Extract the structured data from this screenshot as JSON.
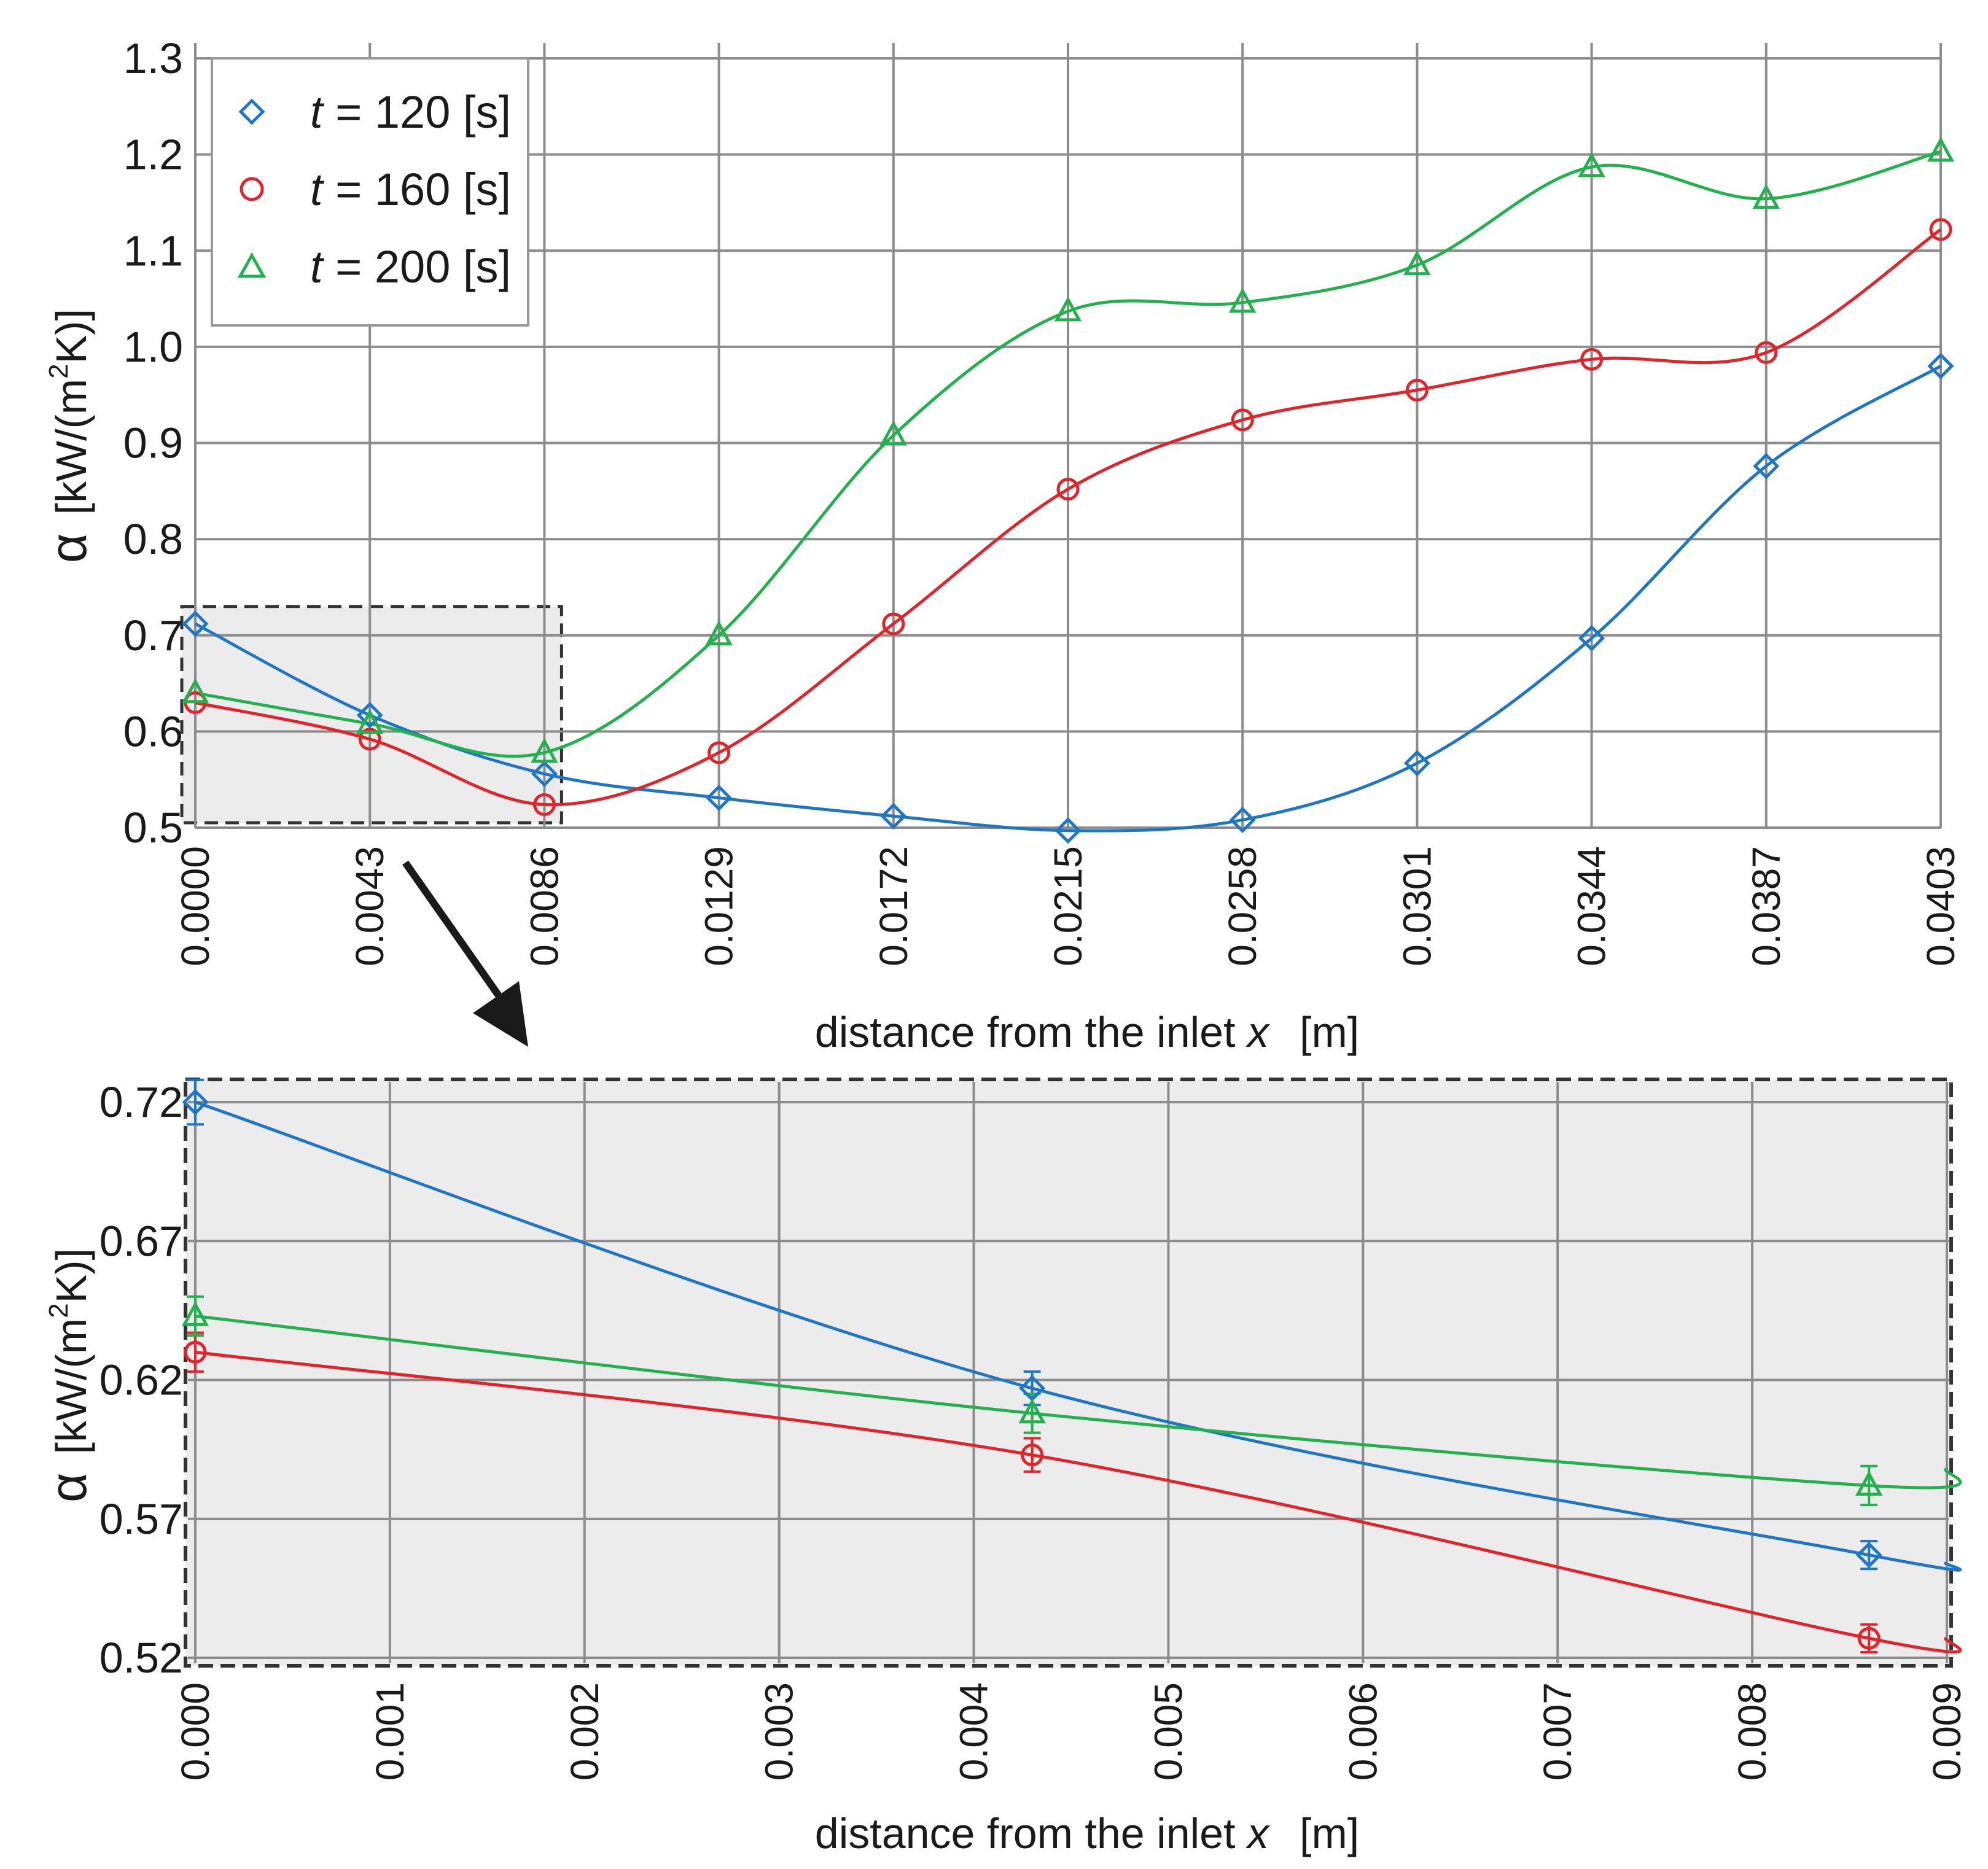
{
  "colors": {
    "t120": "#1f77c4",
    "t160": "#e0242a",
    "t200": "#22b14c",
    "grid": "#8c8c8c",
    "zoom_fill": "#ececec",
    "arrow": "#1a1a1a"
  },
  "chart_data": [
    {
      "id": "main",
      "type": "line",
      "title": "",
      "xlabel_prefix": "distance from the inlet ",
      "xlabel_var": "x",
      "xlabel_unit": "[m]",
      "ylabel_symbol": "α",
      "ylabel_unit_pre": "[kW/(m",
      "ylabel_unit_sup": "2",
      "ylabel_unit_post": "K)]",
      "x_tick_labels": [
        "0.0000",
        "0.0043",
        "0.0086",
        "0.0129",
        "0.0172",
        "0.0215",
        "0.0258",
        "0.0301",
        "0.0344",
        "0.0387",
        "0.0403"
      ],
      "y_tick_labels": [
        "0.5",
        "0.6",
        "0.7",
        "0.8",
        "0.9",
        "1.0",
        "1.1",
        "1.2",
        "1.3"
      ],
      "y_tick_values": [
        0.5,
        0.6,
        0.7,
        0.8,
        0.9,
        1.0,
        1.1,
        1.2,
        1.3
      ],
      "ylim": [
        0.5,
        1.3
      ],
      "grid": true,
      "legend_position": "top-left",
      "legend": [
        {
          "var": "t",
          "text": " = 120 [s]",
          "series": "t120"
        },
        {
          "var": "t",
          "text": " = 160 [s]",
          "series": "t160"
        },
        {
          "var": "t",
          "text": " = 200 [s]",
          "series": "t200"
        }
      ],
      "series": [
        {
          "key": "t120",
          "name": "t = 120 [s]",
          "marker": "diamond",
          "values": [
            0.712,
            0.617,
            0.556,
            0.531,
            0.512,
            0.497,
            0.508,
            0.567,
            0.697,
            0.876,
            0.98
          ]
        },
        {
          "key": "t160",
          "name": "t = 160 [s]",
          "marker": "circle",
          "values": [
            0.63,
            0.592,
            0.524,
            0.578,
            0.712,
            0.852,
            0.924,
            0.955,
            0.987,
            0.994,
            1.122
          ]
        },
        {
          "key": "t200",
          "name": "t = 200 [s]",
          "marker": "triangle",
          "values": [
            0.64,
            0.608,
            0.578,
            0.7,
            0.908,
            1.037,
            1.046,
            1.085,
            1.187,
            1.154,
            1.203
          ]
        }
      ],
      "zoom_region": {
        "x_from_index": 0,
        "x_to_index": 2,
        "y_from": 0.5,
        "y_to": 0.73
      }
    },
    {
      "id": "inset",
      "type": "line",
      "title": "",
      "xlabel_prefix": "distance from the inlet ",
      "xlabel_var": "x",
      "xlabel_unit": "[m]",
      "ylabel_symbol": "α",
      "ylabel_unit_pre": "[kW/(m",
      "ylabel_unit_sup": "2",
      "ylabel_unit_post": "K)]",
      "x_tick_labels": [
        "0.000",
        "0.001",
        "0.002",
        "0.003",
        "0.004",
        "0.005",
        "0.006",
        "0.007",
        "0.008",
        "0.009"
      ],
      "x_tick_values": [
        0.0,
        0.001,
        0.002,
        0.003,
        0.004,
        0.005,
        0.006,
        0.007,
        0.008,
        0.009
      ],
      "xlim": [
        0.0,
        0.009
      ],
      "y_tick_labels": [
        "0.52",
        "0.57",
        "0.62",
        "0.67",
        "0.72"
      ],
      "y_tick_values": [
        0.52,
        0.57,
        0.62,
        0.67,
        0.72
      ],
      "ylim": [
        0.52,
        0.72
      ],
      "grid": true,
      "series": [
        {
          "key": "t120",
          "name": "t = 120 [s]",
          "marker": "diamond",
          "x": [
            0.0,
            0.0043,
            0.0086
          ],
          "values": [
            0.72,
            0.617,
            0.557
          ],
          "errors": [
            0.008,
            0.006,
            0.005
          ],
          "curve_end": 0.554
        },
        {
          "key": "t160",
          "name": "t = 160 [s]",
          "marker": "circle",
          "x": [
            0.0,
            0.0043,
            0.0086
          ],
          "values": [
            0.63,
            0.593,
            0.527
          ],
          "errors": [
            0.007,
            0.006,
            0.005
          ],
          "curve_end": 0.527
        },
        {
          "key": "t200",
          "name": "t = 200 [s]",
          "marker": "triangle",
          "x": [
            0.0,
            0.0043,
            0.0086
          ],
          "values": [
            0.643,
            0.608,
            0.582
          ],
          "errors": [
            0.007,
            0.007,
            0.007
          ],
          "curve_end": 0.588
        }
      ]
    }
  ]
}
